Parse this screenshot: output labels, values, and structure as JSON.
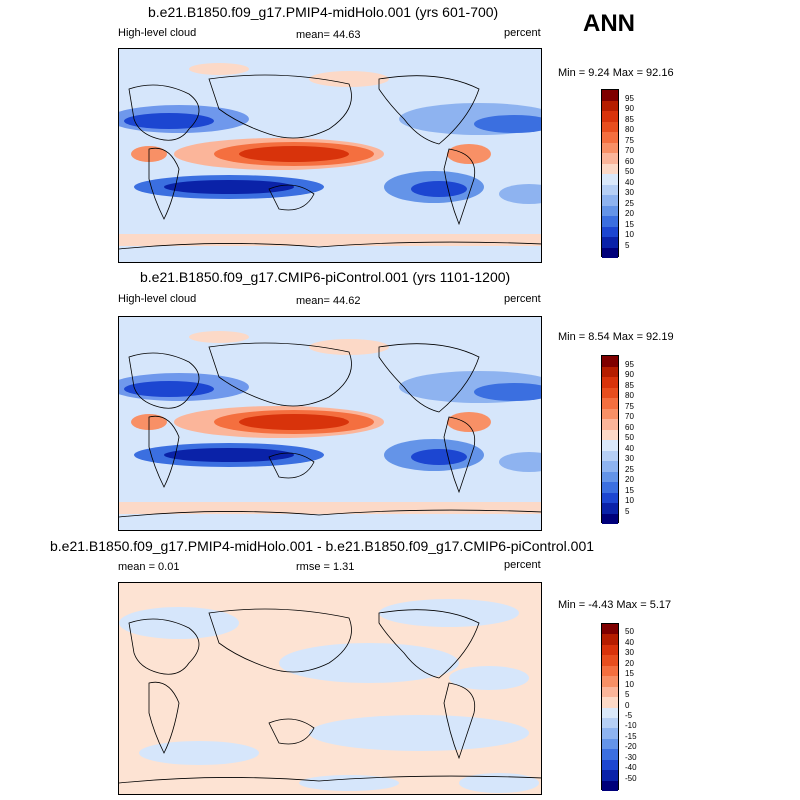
{
  "season": "ANN",
  "panels": [
    {
      "title": "b.e21.B1850.f09_g17.PMIP4-midHolo.001 (yrs 601-700)",
      "variable": "High-level cloud",
      "stat": "mean=  44.63",
      "units": "percent",
      "minmax": "Min =  9.24 Max =  92.16"
    },
    {
      "title": "b.e21.B1850.f09_g17.CMIP6-piControl.001 (yrs 1101-1200)",
      "variable": "High-level cloud",
      "stat": "mean=  44.62",
      "units": "percent",
      "minmax": "Min =  8.54 Max =  92.19"
    },
    {
      "title": "b.e21.B1850.f09_g17.PMIP4-midHolo.001 - b.e21.B1850.f09_g17.CMIP6-piControl.001",
      "mean": "mean =   0.01",
      "rmse": "rmse =   1.31",
      "units": "percent",
      "minmax": "Min =  -4.43 Max =   5.17"
    }
  ],
  "colorbars": {
    "abs": {
      "labels": [
        "95",
        "90",
        "85",
        "80",
        "75",
        "70",
        "60",
        "50",
        "40",
        "30",
        "25",
        "20",
        "15",
        "10",
        "5"
      ],
      "colors": [
        "#7f0000",
        "#b51d00",
        "#d8330b",
        "#e84e1e",
        "#f46f3f",
        "#f89066",
        "#fbb59a",
        "#fcd9c7",
        "#dae8fa",
        "#b6cff5",
        "#8eb3f0",
        "#6494e8",
        "#3b6fe0",
        "#1c46d1",
        "#0a22a8",
        "#00007a"
      ]
    },
    "diff": {
      "labels": [
        "50",
        "40",
        "30",
        "20",
        "15",
        "10",
        "5",
        "0",
        "-5",
        "-10",
        "-15",
        "-20",
        "-30",
        "-40",
        "-50"
      ],
      "colors": [
        "#7f0000",
        "#b51d00",
        "#d8330b",
        "#e84e1e",
        "#f46f3f",
        "#f89066",
        "#fbb59a",
        "#fcd9c7",
        "#dae8fa",
        "#b6cff5",
        "#8eb3f0",
        "#6494e8",
        "#3b6fe0",
        "#1c46d1",
        "#0a22a8",
        "#00007a"
      ]
    }
  }
}
